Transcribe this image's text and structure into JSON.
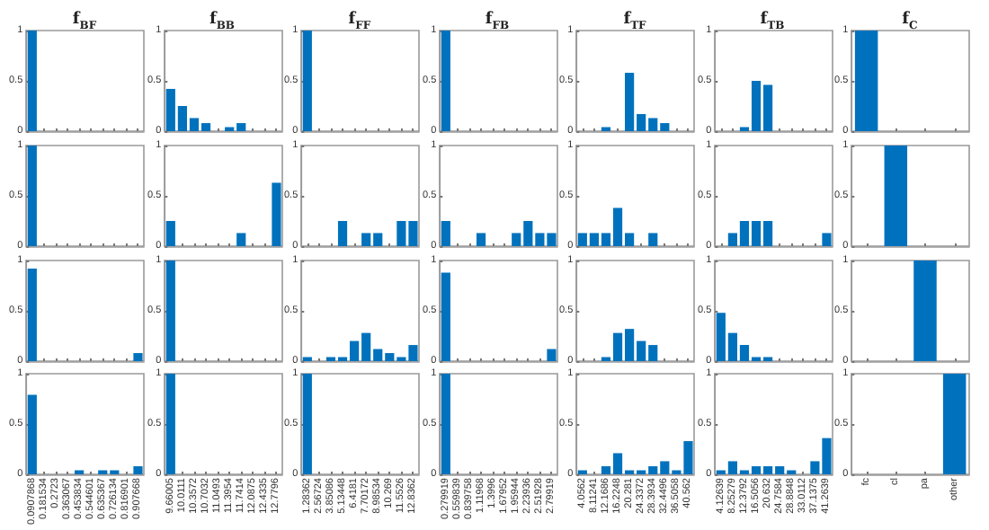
{
  "chart_data": [
    {
      "type": "bar",
      "title": "f$_{BF}$",
      "categories": [
        null,
        null,
        null,
        null,
        null,
        null,
        null,
        null,
        null,
        null
      ],
      "values": [
        1,
        0,
        0,
        0,
        0,
        0,
        0,
        0,
        0,
        0
      ],
      "color": "#0072bd",
      "ylim": [
        0,
        1
      ],
      "yticks": [
        0,
        0.5,
        1
      ],
      "tick_labels": "y"
    },
    {
      "type": "bar",
      "title": "f$_{BB}$",
      "categories": [
        null,
        null,
        null,
        null,
        null,
        null,
        null,
        null,
        null,
        null
      ],
      "values": [
        0.42,
        0.25,
        0.13,
        0.08,
        0,
        0.04,
        0.08,
        0,
        0,
        0
      ],
      "color": "#0072bd",
      "ylim": [
        0,
        1
      ],
      "yticks": [
        0,
        0.5,
        1
      ],
      "tick_labels": "y"
    },
    {
      "type": "bar",
      "title": "f$_{FF}$",
      "categories": [
        null,
        null,
        null,
        null,
        null,
        null,
        null,
        null,
        null,
        null
      ],
      "values": [
        1,
        0,
        0,
        0,
        0,
        0,
        0,
        0,
        0,
        0
      ],
      "color": "#0072bd",
      "ylim": [
        0,
        1
      ],
      "yticks": [
        0,
        0.5,
        1
      ],
      "tick_labels": "y"
    },
    {
      "type": "bar",
      "title": "f$_{FB}$",
      "categories": [
        null,
        null,
        null,
        null,
        null,
        null,
        null,
        null,
        null,
        null
      ],
      "values": [
        1,
        0,
        0,
        0,
        0,
        0,
        0,
        0,
        0,
        0
      ],
      "color": "#0072bd",
      "ylim": [
        0,
        1
      ],
      "yticks": [
        0,
        0.5,
        1
      ],
      "tick_labels": "y"
    },
    {
      "type": "bar",
      "title": "f$_{TF}$",
      "categories": [
        null,
        null,
        null,
        null,
        null,
        null,
        null,
        null,
        null,
        null
      ],
      "values": [
        0,
        0,
        0.04,
        0,
        0.58,
        0.17,
        0.13,
        0.08,
        0,
        0
      ],
      "color": "#0072bd",
      "ylim": [
        0,
        1
      ],
      "yticks": [
        0,
        0.5,
        1
      ],
      "tick_labels": "y"
    },
    {
      "type": "bar",
      "title": "f$_{TB}$",
      "categories": [
        null,
        null,
        null,
        null,
        null,
        null,
        null,
        null,
        null,
        null
      ],
      "values": [
        0,
        0,
        0.04,
        0.5,
        0.46,
        0,
        0,
        0,
        0,
        0
      ],
      "color": "#0072bd",
      "ylim": [
        0,
        1
      ],
      "yticks": [
        0,
        0.5,
        1
      ],
      "tick_labels": "y"
    },
    {
      "type": "bar",
      "title": "f$_{C}$",
      "categories": [
        null,
        null,
        null,
        null
      ],
      "values": [
        1,
        0,
        0,
        0
      ],
      "color": "#0072bd",
      "ylim": [
        0,
        1
      ],
      "yticks": [
        0,
        0.5,
        1
      ],
      "tick_labels": "y"
    },
    {
      "type": "bar",
      "categories": [
        null,
        null,
        null,
        null,
        null,
        null,
        null,
        null,
        null,
        null
      ],
      "values": [
        1,
        0,
        0,
        0,
        0,
        0,
        0,
        0,
        0,
        0
      ],
      "color": "#0072bd",
      "ylim": [
        0,
        1
      ],
      "yticks": [
        0,
        0.5,
        1
      ],
      "tick_labels": "y"
    },
    {
      "type": "bar",
      "categories": [
        null,
        null,
        null,
        null,
        null,
        null,
        null,
        null,
        null,
        null
      ],
      "values": [
        0.25,
        0,
        0,
        0,
        0,
        0,
        0.13,
        0,
        0,
        0.63
      ],
      "color": "#0072bd",
      "ylim": [
        0,
        1
      ],
      "yticks": [
        0,
        0.5,
        1
      ],
      "tick_labels": "y"
    },
    {
      "type": "bar",
      "categories": [
        null,
        null,
        null,
        null,
        null,
        null,
        null,
        null,
        null,
        null
      ],
      "values": [
        0,
        0,
        0,
        0.25,
        0,
        0.13,
        0.13,
        0,
        0.25,
        0.25
      ],
      "color": "#0072bd",
      "ylim": [
        0,
        1
      ],
      "yticks": [
        0,
        0.5,
        1
      ],
      "tick_labels": "y"
    },
    {
      "type": "bar",
      "categories": [
        null,
        null,
        null,
        null,
        null,
        null,
        null,
        null,
        null,
        null
      ],
      "values": [
        0.25,
        0,
        0,
        0.13,
        0,
        0,
        0.13,
        0.25,
        0.13,
        0.13
      ],
      "color": "#0072bd",
      "ylim": [
        0,
        1
      ],
      "yticks": [
        0,
        0.5,
        1
      ],
      "tick_labels": "y"
    },
    {
      "type": "bar",
      "categories": [
        null,
        null,
        null,
        null,
        null,
        null,
        null,
        null,
        null,
        null
      ],
      "values": [
        0.13,
        0.13,
        0.13,
        0.38,
        0.13,
        0,
        0.13,
        0,
        0,
        0
      ],
      "color": "#0072bd",
      "ylim": [
        0,
        1
      ],
      "yticks": [
        0,
        0.5,
        1
      ],
      "tick_labels": "y"
    },
    {
      "type": "bar",
      "categories": [
        null,
        null,
        null,
        null,
        null,
        null,
        null,
        null,
        null,
        null
      ],
      "values": [
        0,
        0.13,
        0.25,
        0.25,
        0.25,
        0,
        0,
        0,
        0,
        0.13
      ],
      "color": "#0072bd",
      "ylim": [
        0,
        1
      ],
      "yticks": [
        0,
        0.5,
        1
      ],
      "tick_labels": "y"
    },
    {
      "type": "bar",
      "categories": [
        null,
        null,
        null,
        null
      ],
      "values": [
        0,
        1,
        0,
        0
      ],
      "color": "#0072bd",
      "ylim": [
        0,
        1
      ],
      "yticks": [
        0,
        0.5,
        1
      ],
      "tick_labels": "y"
    },
    {
      "type": "bar",
      "categories": [
        null,
        null,
        null,
        null,
        null,
        null,
        null,
        null,
        null,
        null
      ],
      "values": [
        0.92,
        0,
        0,
        0,
        0,
        0,
        0,
        0,
        0,
        0.08
      ],
      "color": "#0072bd",
      "ylim": [
        0,
        1
      ],
      "yticks": [
        0,
        0.5,
        1
      ],
      "tick_labels": "y"
    },
    {
      "type": "bar",
      "categories": [
        null,
        null,
        null,
        null,
        null,
        null,
        null,
        null,
        null,
        null
      ],
      "values": [
        1,
        0,
        0,
        0,
        0,
        0,
        0,
        0,
        0,
        0
      ],
      "color": "#0072bd",
      "ylim": [
        0,
        1
      ],
      "yticks": [
        0,
        0.5,
        1
      ],
      "tick_labels": "y"
    },
    {
      "type": "bar",
      "categories": [
        null,
        null,
        null,
        null,
        null,
        null,
        null,
        null,
        null,
        null
      ],
      "values": [
        0.04,
        0,
        0.04,
        0.04,
        0.2,
        0.28,
        0.12,
        0.08,
        0.04,
        0.16
      ],
      "color": "#0072bd",
      "ylim": [
        0,
        1
      ],
      "yticks": [
        0,
        0.5,
        1
      ],
      "tick_labels": "y"
    },
    {
      "type": "bar",
      "categories": [
        null,
        null,
        null,
        null,
        null,
        null,
        null,
        null,
        null,
        null
      ],
      "values": [
        0.88,
        0,
        0,
        0,
        0,
        0,
        0,
        0,
        0,
        0.12
      ],
      "color": "#0072bd",
      "ylim": [
        0,
        1
      ],
      "yticks": [
        0,
        0.5,
        1
      ],
      "tick_labels": "y"
    },
    {
      "type": "bar",
      "categories": [
        null,
        null,
        null,
        null,
        null,
        null,
        null,
        null,
        null,
        null
      ],
      "values": [
        0,
        0,
        0.04,
        0.28,
        0.32,
        0.2,
        0.16,
        0,
        0,
        0
      ],
      "color": "#0072bd",
      "ylim": [
        0,
        1
      ],
      "yticks": [
        0,
        0.5,
        1
      ],
      "tick_labels": "y"
    },
    {
      "type": "bar",
      "categories": [
        null,
        null,
        null,
        null,
        null,
        null,
        null,
        null,
        null,
        null
      ],
      "values": [
        0.48,
        0.28,
        0.16,
        0.04,
        0.04,
        0,
        0,
        0,
        0,
        0
      ],
      "color": "#0072bd",
      "ylim": [
        0,
        1
      ],
      "yticks": [
        0,
        0.5,
        1
      ],
      "tick_labels": "y"
    },
    {
      "type": "bar",
      "categories": [
        null,
        null,
        null,
        null
      ],
      "values": [
        0,
        0,
        1,
        0
      ],
      "color": "#0072bd",
      "ylim": [
        0,
        1
      ],
      "yticks": [
        0,
        0.5,
        1
      ],
      "tick_labels": "y"
    },
    {
      "type": "bar",
      "categories": [
        "0.0907868",
        "0.181534",
        "0.2723",
        "0.363067",
        "0.453834",
        "0.544601",
        "0.635367",
        "0.726134",
        "0.816901",
        "0.907668"
      ],
      "values": [
        0.79,
        0,
        0,
        0,
        0.04,
        0,
        0.04,
        0.04,
        0,
        0.08
      ],
      "color": "#0072bd",
      "ylim": [
        0,
        1
      ],
      "yticks": [
        0,
        0.5,
        1
      ]
    },
    {
      "type": "bar",
      "categories": [
        "9.66005",
        "10.0111",
        "10.3572",
        "10.7032",
        "11.0493",
        "11.3954",
        "11.7414",
        "12.0875",
        "12.4335",
        "12.7796"
      ],
      "values": [
        1,
        0,
        0,
        0,
        0,
        0,
        0,
        0,
        0,
        0
      ],
      "color": "#0072bd",
      "ylim": [
        0,
        1
      ],
      "yticks": [
        0,
        0.5,
        1
      ]
    },
    {
      "type": "bar",
      "categories": [
        "1.28362",
        "2.56724",
        "3.85086",
        "5.13448",
        "6.4181",
        "7.70172",
        "8.98534",
        "10.269",
        "11.5526",
        "12.8362"
      ],
      "values": [
        1,
        0,
        0,
        0,
        0,
        0,
        0,
        0,
        0,
        0
      ],
      "color": "#0072bd",
      "ylim": [
        0,
        1
      ],
      "yticks": [
        0,
        0.5,
        1
      ]
    },
    {
      "type": "bar",
      "categories": [
        "0.279919",
        "0.559839",
        "0.839758",
        "1.11968",
        "1.3996",
        "1.67952",
        "1.95944",
        "2.23936",
        "2.51928",
        "2.79919"
      ],
      "values": [
        1,
        0,
        0,
        0,
        0,
        0,
        0,
        0,
        0,
        0
      ],
      "color": "#0072bd",
      "ylim": [
        0,
        1
      ],
      "yticks": [
        0,
        0.5,
        1
      ]
    },
    {
      "type": "bar",
      "categories": [
        "4.0562",
        "8.11241",
        "12.1686",
        "16.2248",
        "20.281",
        "24.3372",
        "28.3934",
        "32.4496",
        "36.5058",
        "40.562"
      ],
      "values": [
        0.04,
        0,
        0.08,
        0.21,
        0.04,
        0.04,
        0.08,
        0.13,
        0.04,
        0.33
      ],
      "color": "#0072bd",
      "ylim": [
        0,
        1
      ],
      "yticks": [
        0,
        0.5,
        1
      ]
    },
    {
      "type": "bar",
      "categories": [
        "4.12639",
        "8.25279",
        "12.3792",
        "16.5056",
        "20.632",
        "24.7584",
        "28.8848",
        "33.0112",
        "37.1375",
        "41.2639"
      ],
      "values": [
        0.04,
        0.13,
        0.04,
        0.08,
        0.08,
        0.08,
        0.04,
        0,
        0.13,
        0.36
      ],
      "color": "#0072bd",
      "ylim": [
        0,
        1
      ],
      "yticks": [
        0,
        0.5,
        1
      ]
    },
    {
      "type": "bar",
      "categories": [
        "fc",
        "cl",
        "pa",
        "other"
      ],
      "values": [
        0,
        0,
        0,
        1
      ],
      "color": "#0072bd",
      "ylim": [
        0,
        1
      ],
      "yticks": [
        0,
        0.5,
        1
      ]
    }
  ]
}
